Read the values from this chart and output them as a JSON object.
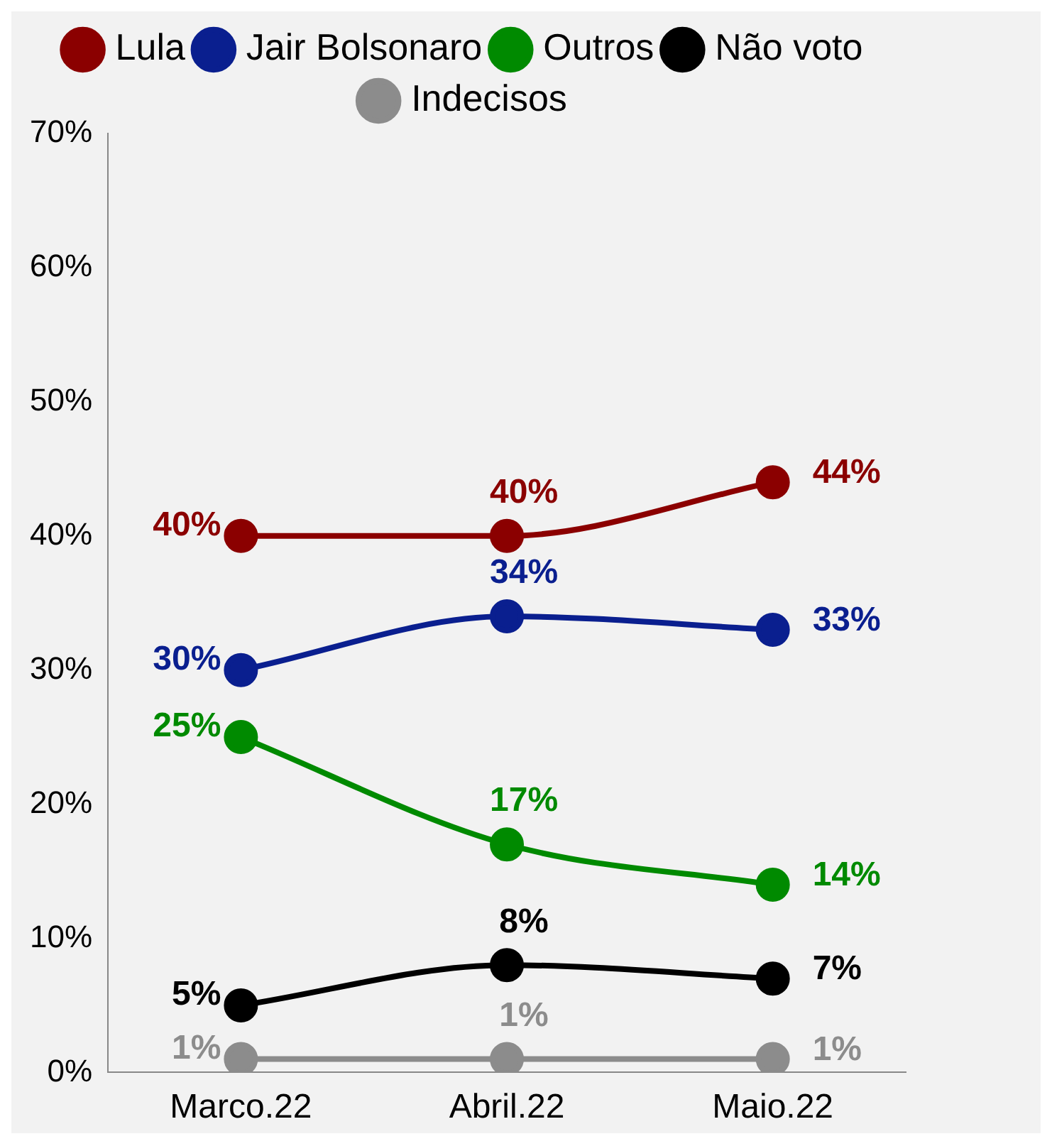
{
  "chart_data": {
    "type": "line",
    "categories": [
      "Marco.22",
      "Abril.22",
      "Maio.22"
    ],
    "series": [
      {
        "name": "Lula",
        "color": "#8b0000",
        "values": [
          40,
          40,
          44
        ],
        "value_labels": [
          "40%",
          "40%",
          "44%"
        ]
      },
      {
        "name": "Jair Bolsonaro",
        "color": "#0a1f8f",
        "values": [
          30,
          34,
          33
        ],
        "value_labels": [
          "30%",
          "34%",
          "33%"
        ]
      },
      {
        "name": "Outros",
        "color": "#008a00",
        "values": [
          25,
          17,
          14
        ],
        "value_labels": [
          "25%",
          "17%",
          "14%"
        ]
      },
      {
        "name": "Não voto",
        "color": "#000000",
        "values": [
          5,
          8,
          7
        ],
        "value_labels": [
          "5%",
          "8%",
          "7%"
        ]
      },
      {
        "name": "Indecisos",
        "color": "#8c8c8c",
        "values": [
          1,
          1,
          1
        ],
        "value_labels": [
          "1%",
          "1%",
          "1%"
        ]
      }
    ],
    "ylim": [
      0,
      70
    ],
    "yticks": [
      {
        "value": 0,
        "label": "0%"
      },
      {
        "value": 10,
        "label": "10%"
      },
      {
        "value": 20,
        "label": "20%"
      },
      {
        "value": 30,
        "label": "30%"
      },
      {
        "value": 40,
        "label": "40%"
      },
      {
        "value": 50,
        "label": "50%"
      },
      {
        "value": 60,
        "label": "60%"
      },
      {
        "value": 70,
        "label": "70%"
      }
    ],
    "grid": false,
    "legend": "top",
    "marker": "circle",
    "line_style": "solid"
  }
}
